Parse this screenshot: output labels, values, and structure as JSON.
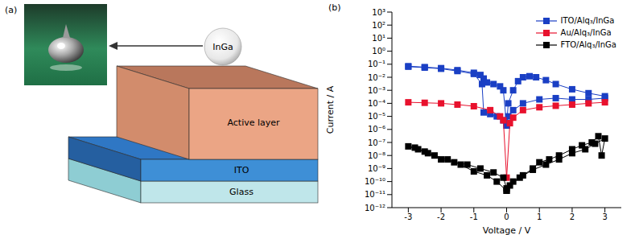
{
  "diagram": {
    "panel_label": "(a)",
    "contact": "InGa",
    "layers": {
      "active": "Active layer",
      "electrode": "ITO",
      "substrate": "Glass"
    }
  },
  "chart_data": {
    "type": "scatter",
    "panel_label": "(b)",
    "x_label": "Voltage / V",
    "y_label": "Current / A",
    "log": "y",
    "grid": false,
    "legend": "upper right",
    "xlim": [
      -3.5,
      3.5
    ],
    "xticks": [
      -3,
      -2,
      -1,
      0,
      1,
      2,
      3
    ],
    "ylim": [
      1e-12,
      1000
    ],
    "yticks": [
      {
        "value": 1e-12,
        "label": "10⁻¹²"
      },
      {
        "value": 1e-11,
        "label": "10⁻¹¹"
      },
      {
        "value": 1e-10,
        "label": "10⁻¹⁰"
      },
      {
        "value": 1e-09,
        "label": "10⁻⁹"
      },
      {
        "value": 1e-08,
        "label": "10⁻⁸"
      },
      {
        "value": 1e-07,
        "label": "10⁻⁷"
      },
      {
        "value": 1e-06,
        "label": "10⁻⁶"
      },
      {
        "value": 1e-05,
        "label": "10⁻⁵"
      },
      {
        "value": 0.0001,
        "label": "10⁻⁴"
      },
      {
        "value": 0.001,
        "label": "10⁻³"
      },
      {
        "value": 0.01,
        "label": "10⁻²"
      },
      {
        "value": 0.1,
        "label": "10⁻¹"
      },
      {
        "value": 1,
        "label": "10⁰"
      },
      {
        "value": 10,
        "label": "10¹"
      },
      {
        "value": 100,
        "label": "10²"
      },
      {
        "value": 1000,
        "label": "10³"
      }
    ],
    "series": [
      {
        "name": "ITO/Alq₃/InGa",
        "color": "#1a3fc4",
        "marker": "square",
        "line_style": "solid",
        "x": [
          0,
          0.05,
          0.2,
          0.35,
          0.5,
          0.7,
          0.9,
          1.2,
          1.5,
          2,
          2.5,
          3,
          3,
          2.5,
          2,
          1.5,
          1,
          0.5,
          0.2,
          0.05,
          0,
          -0.1,
          -0.3,
          -0.5,
          -0.7,
          -0.75,
          -1,
          -1.5,
          -2,
          -2.5,
          -3,
          -3,
          -2.5,
          -2,
          -1.5,
          -1,
          -0.8,
          -0.7,
          -0.6,
          -0.4,
          -0.2,
          -0.1,
          0
        ],
        "values": [
          2e-06,
          0.0001,
          0.001,
          0.005,
          0.01,
          0.012,
          0.01,
          0.006,
          0.003,
          0.0012,
          0.0006,
          0.00035,
          0.00025,
          0.0002,
          0.0002,
          0.00025,
          0.0002,
          0.0001,
          3e-05,
          1e-05,
          3e-06,
          5e-06,
          1e-05,
          1.5e-05,
          2e-05,
          0.003,
          0.018,
          0.03,
          0.045,
          0.055,
          0.065,
          0.07,
          0.06,
          0.05,
          0.035,
          0.022,
          0.015,
          0.008,
          0.004,
          0.003,
          0.002,
          0.001,
          2e-06
        ]
      },
      {
        "name": "Au/Alq₃/InGa",
        "color": "#e8112d",
        "marker": "square",
        "line_style": "solid",
        "x": [
          -3,
          -2.5,
          -2,
          -1.5,
          -1,
          -0.5,
          -0.2,
          -0.1,
          0,
          0.1,
          0.2,
          0.5,
          1,
          1.5,
          2,
          2.5,
          3
        ],
        "values": [
          0.00012,
          0.00011,
          0.0001,
          8e-05,
          6e-05,
          3e-05,
          1e-05,
          5e-06,
          2e-10,
          3e-06,
          8e-06,
          3e-05,
          5e-05,
          6.5e-05,
          8e-05,
          0.0001,
          0.00012
        ]
      },
      {
        "name": "FTO/Alq₃/InGa",
        "color": "#000000",
        "marker": "square",
        "line_style": "solid",
        "x": [
          0,
          0.2,
          0.5,
          0.8,
          1,
          1.3,
          1.6,
          2,
          2.3,
          2.6,
          2.8,
          2.9,
          3,
          2.7,
          2.4,
          2,
          1.6,
          1.2,
          0.8,
          0.4,
          0.1,
          0,
          -0.1,
          -0.4,
          -0.8,
          -1.2,
          -1.6,
          -2,
          -2.4,
          -2.7,
          -3,
          -2.8,
          -2.5,
          -2.2,
          -1.8,
          -1.4,
          -1,
          -0.6,
          -0.3,
          0
        ],
        "values": [
          2e-11,
          1e-10,
          3e-10,
          1e-09,
          3e-09,
          5e-09,
          1e-08,
          3e-08,
          6e-08,
          1e-07,
          3e-07,
          1e-08,
          2e-07,
          8e-08,
          3e-08,
          1.5e-08,
          5e-09,
          2e-09,
          8e-10,
          2e-10,
          5e-11,
          3e-11,
          2e-10,
          5e-10,
          1e-09,
          2e-09,
          3e-09,
          5e-09,
          1.5e-08,
          3e-08,
          5e-08,
          4e-08,
          2e-08,
          1e-08,
          5e-09,
          2e-09,
          6e-10,
          3e-10,
          1e-10,
          2e-11
        ]
      }
    ]
  }
}
